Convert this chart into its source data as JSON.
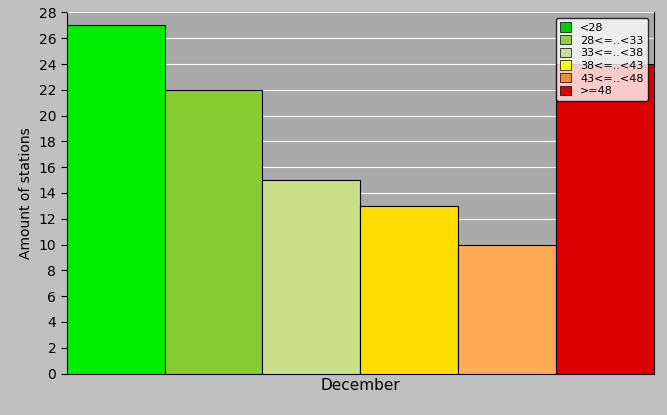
{
  "bars": [
    {
      "label": "<28",
      "value": 27,
      "color": "#00ee00"
    },
    {
      "label": "28<=..<33",
      "value": 22,
      "color": "#88cc33"
    },
    {
      "label": "33<=..<38",
      "value": 15,
      "color": "#ccdd88"
    },
    {
      "label": "38<=..<43",
      "value": 13,
      "color": "#ffdd00"
    },
    {
      "label": "43<=..<48",
      "value": 10,
      "color": "#ffaa55"
    },
    {
      "label": ">=48",
      "value": 24,
      "color": "#dd0000"
    }
  ],
  "legend_colors": [
    "#00cc00",
    "#99cc44",
    "#ccdd99",
    "#ffff00",
    "#ff8833",
    "#dd0000"
  ],
  "ylabel": "Amount of stations",
  "xlabel": "December",
  "ylim": [
    0,
    28
  ],
  "yticks": [
    0,
    2,
    4,
    6,
    8,
    10,
    12,
    14,
    16,
    18,
    20,
    22,
    24,
    26,
    28
  ],
  "background_color": "#c0c0c0",
  "plot_bg_color": "#aaaaaa"
}
